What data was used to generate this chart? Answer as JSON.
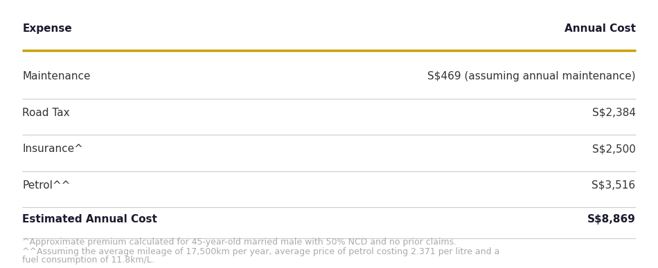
{
  "header": [
    "Expense",
    "Annual Cost"
  ],
  "rows": [
    [
      "Maintenance",
      "S$469 (assuming annual maintenance)"
    ],
    [
      "Road Tax",
      "S$2,384"
    ],
    [
      "Insurance^",
      "S$2,500"
    ],
    [
      "Petrol^^",
      "S$3,516"
    ]
  ],
  "total_row": [
    "Estimated Annual Cost",
    "S$8,869"
  ],
  "footnotes": [
    "^Approximate premium calculated for 45-year-old married male with 50% NCD and no prior claims.",
    "^^Assuming the average mileage of 17,500km per year, average price of petrol costing 2.371 per litre and a",
    "fuel consumption of 11.8km/L."
  ],
  "header_color": "#1a1a2e",
  "gold_line_color": "#c8a000",
  "divider_color": "#cccccc",
  "footnote_color": "#aaaaaa",
  "row_text_color": "#333333",
  "background_color": "#ffffff",
  "header_fontsize": 11,
  "row_fontsize": 11,
  "total_fontsize": 11,
  "footnote_fontsize": 9
}
